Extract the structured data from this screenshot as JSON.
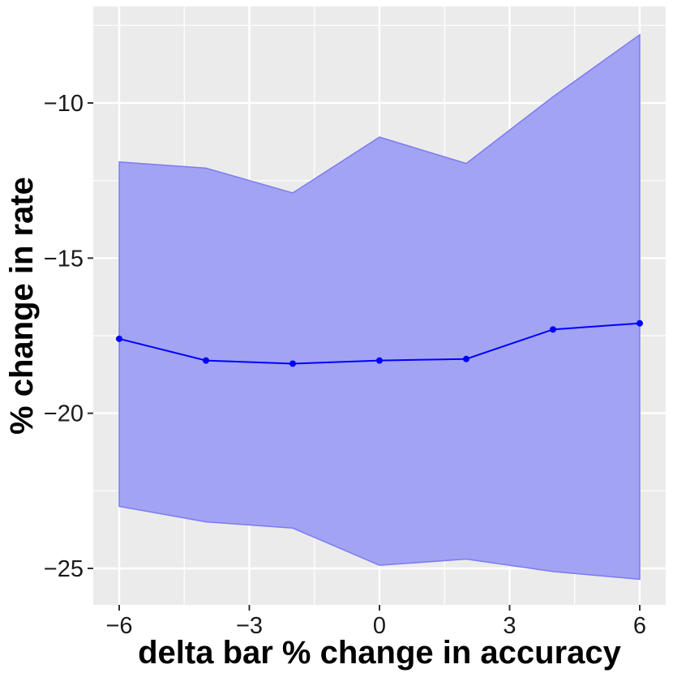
{
  "chart_data": {
    "type": "line",
    "title": "",
    "xlabel": "delta bar % change in accuracy",
    "ylabel": "% change in rate",
    "x": [
      -6,
      -4,
      -2,
      0,
      2,
      4,
      6
    ],
    "series": [
      {
        "values": [
          -17.6,
          -18.3,
          -18.4,
          -18.3,
          -18.25,
          -17.3,
          -17.1
        ],
        "lower": [
          -23.0,
          -23.5,
          -23.7,
          -24.9,
          -24.7,
          -25.1,
          -25.35
        ],
        "upper": [
          -11.9,
          -12.1,
          -12.9,
          -11.1,
          -11.95,
          -9.8,
          -7.8
        ]
      }
    ],
    "xlim": [
      -6.6,
      6.6
    ],
    "ylim": [
      -25.0,
      -7.0
    ],
    "x_ticks": [
      -6,
      -3,
      0,
      3,
      6
    ],
    "x_tick_labels": [
      "−6",
      "−3",
      "0",
      "3",
      "6"
    ],
    "y_ticks": [
      -25,
      -20,
      -15,
      -10
    ],
    "y_tick_labels": [
      "−25",
      "−20",
      "−15",
      "−10"
    ],
    "grid": true,
    "colors": {
      "panel_bg": "#ebebeb",
      "grid_major": "#ffffff",
      "line": "#0000ff",
      "ribbon_fill": "#a3a3f3",
      "ribbon_edge": "#7b7bf3"
    }
  }
}
